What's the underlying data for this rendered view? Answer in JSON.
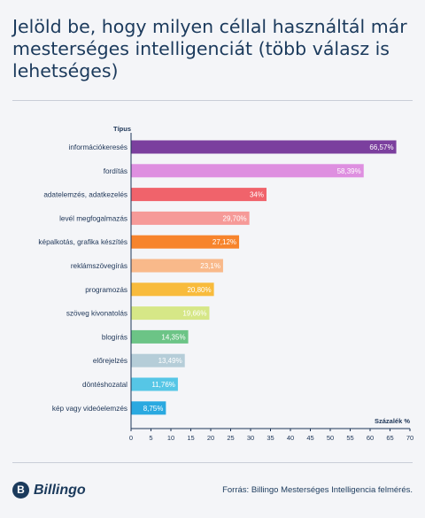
{
  "header": {
    "title": "Jelöld be, hogy milyen céllal használtál már mesterséges intelligenciát (több válasz is lehetséges)"
  },
  "footer": {
    "logo_text": "Billingo",
    "logo_mark": "B",
    "source": "Forrás: Billingo Mesterséges Intelligencia felmérés."
  },
  "chart_data": {
    "type": "bar",
    "orientation": "horizontal",
    "ylabel": "Típus",
    "xlabel": "Százalék %",
    "xlim": [
      0,
      70
    ],
    "xticks": [
      0,
      5,
      10,
      15,
      20,
      25,
      30,
      35,
      40,
      45,
      50,
      55,
      60,
      65,
      70
    ],
    "grid": false,
    "categories": [
      "információkeresés",
      "fordítás",
      "adatelemzés, adatkezelés",
      "levél megfogalmazás",
      "képalkotás, grafika készítés",
      "reklámszövegírás",
      "programozás",
      "szöveg kivonatolás",
      "blogírás",
      "előrejelzés",
      "döntéshozatal",
      "kép vagy videóelemzés"
    ],
    "values": [
      66.57,
      58.39,
      34,
      29.7,
      27.12,
      23.1,
      20.8,
      19.66,
      14.35,
      13.49,
      11.76,
      8.75
    ],
    "value_labels": [
      "66,57%",
      "58,39%",
      "34%",
      "29,70%",
      "27,12%",
      "23,1%",
      "20,80%",
      "19,66%",
      "14,35%",
      "13,49%",
      "11,76%",
      "8,75%"
    ],
    "colors": [
      "#7b3f9e",
      "#de8fe0",
      "#f0636b",
      "#f69a98",
      "#f7842c",
      "#f9b98a",
      "#f8bb3c",
      "#d6e787",
      "#6cc486",
      "#b5cdd8",
      "#56c6e6",
      "#2aa9e0"
    ]
  }
}
